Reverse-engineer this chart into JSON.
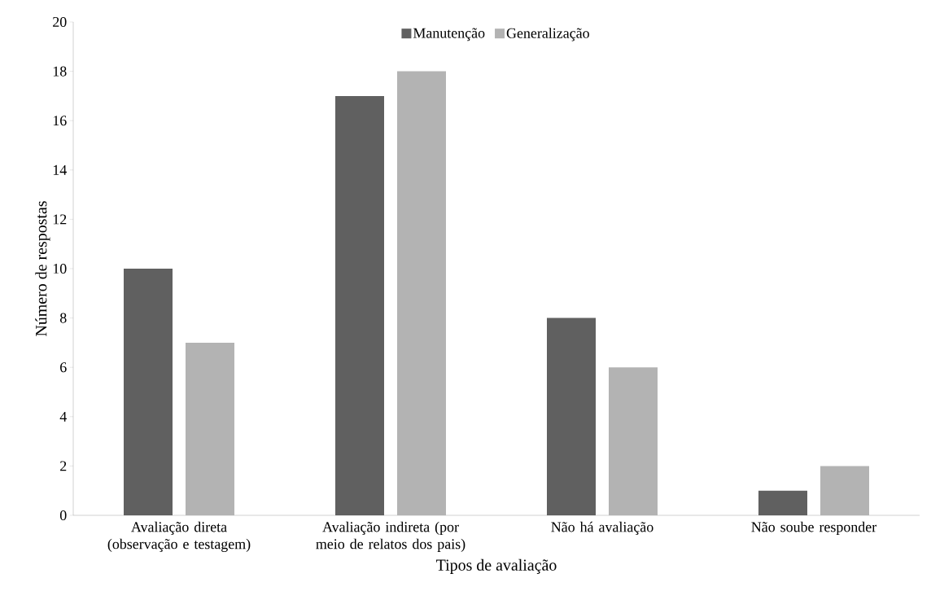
{
  "chart_data": {
    "type": "bar",
    "xlabel": "Tipos de avaliação",
    "ylabel": "Número de respostas",
    "categories": [
      "Avaliação direta (observação e testagem)",
      "Avaliação indireta (por meio de relatos dos pais)",
      "Não há avaliação",
      "Não soube responder"
    ],
    "series": [
      {
        "name": "Manutenção",
        "color": "#606060",
        "values": [
          10,
          17,
          8,
          1
        ]
      },
      {
        "name": "Generalização",
        "color": "#b3b3b3",
        "values": [
          7,
          18,
          6,
          2
        ]
      }
    ],
    "ylim": [
      0,
      20
    ],
    "yticks": [
      0,
      2,
      4,
      6,
      8,
      10,
      12,
      14,
      16,
      18,
      20
    ],
    "grid": false,
    "legend": "top"
  }
}
